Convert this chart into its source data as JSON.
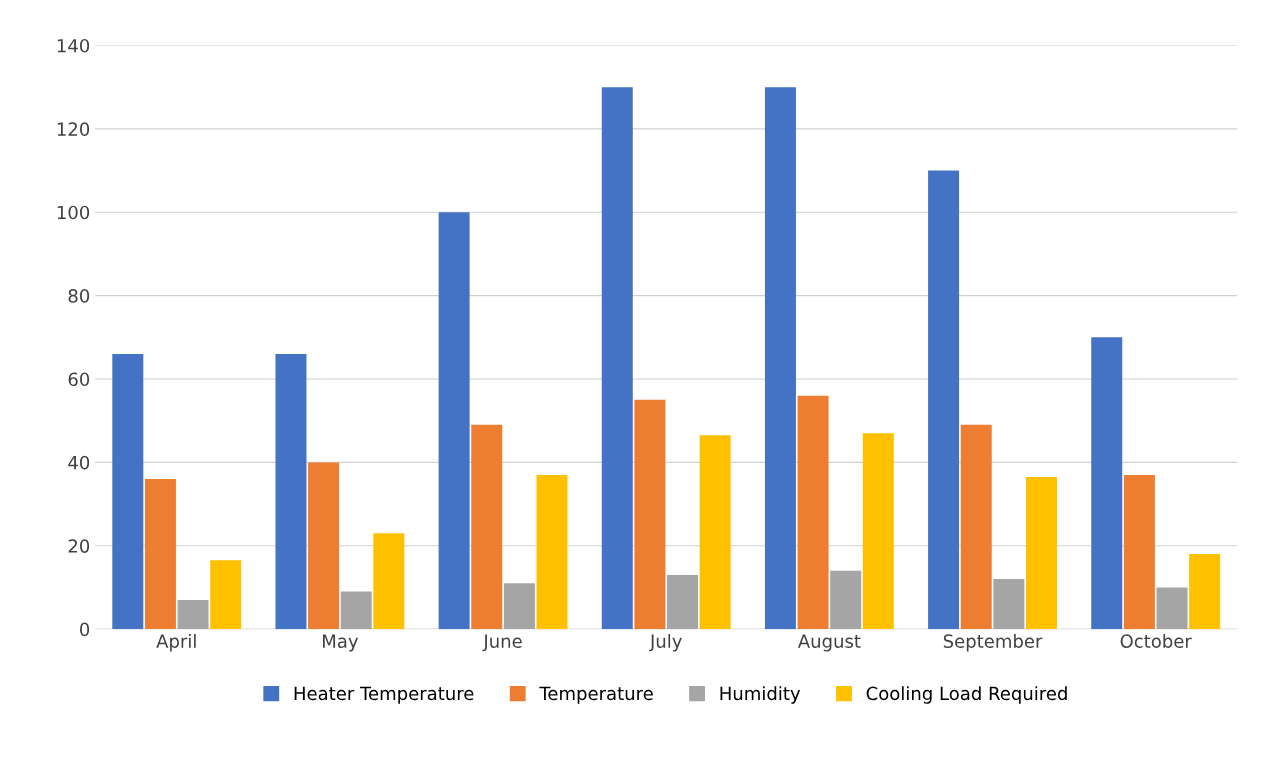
{
  "chart_data": {
    "type": "bar",
    "categories": [
      "April",
      "May",
      "June",
      "July",
      "August",
      "September",
      "October"
    ],
    "series": [
      {
        "name": "Heater Temperature",
        "color": "#4472c4",
        "values": [
          66,
          66,
          100,
          130,
          130,
          110,
          70
        ]
      },
      {
        "name": "Temperature",
        "color": "#ed7d31",
        "values": [
          36,
          40,
          49,
          55,
          56,
          49,
          37
        ]
      },
      {
        "name": "Humidity",
        "color": "#a5a5a5",
        "values": [
          7,
          9,
          11,
          13,
          14,
          12,
          10
        ]
      },
      {
        "name": "Cooling Load Required",
        "color": "#ffc000",
        "values": [
          16.5,
          23,
          37,
          46.5,
          47,
          36.5,
          18
        ]
      }
    ],
    "ylim": [
      0,
      140
    ],
    "yticks": [
      0,
      20,
      40,
      60,
      80,
      100,
      120,
      140
    ],
    "grid": "y",
    "legend": "bottom"
  }
}
